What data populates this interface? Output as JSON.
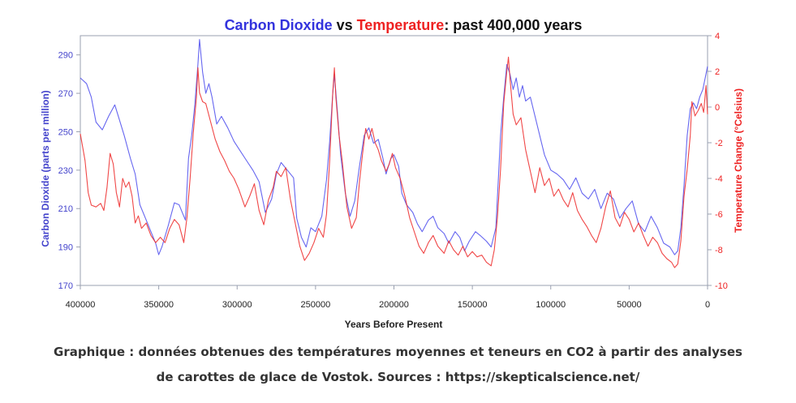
{
  "chart_data": {
    "type": "line",
    "title_parts": [
      {
        "text": "Carbon Dioxide",
        "color": "#3333dd"
      },
      {
        "text": " vs ",
        "color": "#111111"
      },
      {
        "text": "Temperature",
        "color": "#ee2222"
      },
      {
        "text": ": past 400,000 years",
        "color": "#111111"
      }
    ],
    "xlabel": "Years Before Present",
    "ylabel_left": "Carbon Dioxide (parts per million)",
    "ylabel_right": "Temperature Change (°Celsius)",
    "xlim": [
      400000,
      0
    ],
    "ylim_left": [
      170,
      300
    ],
    "ylim_right": [
      -10,
      4
    ],
    "x_ticks": [
      "400000",
      "350000",
      "300000",
      "250000",
      "200000",
      "150000",
      "100000",
      "50000",
      "0"
    ],
    "y_ticks_left": [
      "290",
      "270",
      "250",
      "230",
      "210",
      "190",
      "170"
    ],
    "y_ticks_right": [
      "4",
      "2",
      "0",
      "-2",
      "-4",
      "-6",
      "-8",
      "-10"
    ],
    "grid": false,
    "colors": {
      "co2": "#5555ee",
      "temperature": "#ee3333",
      "frame": "#9aa0b0",
      "left_axis_text": "#4444cc",
      "right_axis_text": "#ee2222"
    },
    "series": [
      {
        "key": "co2",
        "axis": "left",
        "color": "#5555ee",
        "points": [
          [
            400000,
            278
          ],
          [
            396000,
            275
          ],
          [
            393000,
            268
          ],
          [
            390000,
            255
          ],
          [
            386000,
            251
          ],
          [
            382000,
            258
          ],
          [
            378000,
            264
          ],
          [
            375000,
            256
          ],
          [
            372000,
            248
          ],
          [
            368000,
            236
          ],
          [
            365000,
            228
          ],
          [
            362000,
            212
          ],
          [
            358000,
            204
          ],
          [
            355000,
            198
          ],
          [
            352000,
            192
          ],
          [
            350000,
            186
          ],
          [
            348000,
            190
          ],
          [
            344000,
            201
          ],
          [
            340000,
            213
          ],
          [
            337000,
            212
          ],
          [
            333000,
            204
          ],
          [
            331000,
            236
          ],
          [
            329000,
            248
          ],
          [
            327000,
            264
          ],
          [
            325000,
            285
          ],
          [
            324000,
            298
          ],
          [
            322000,
            281
          ],
          [
            320000,
            270
          ],
          [
            318000,
            275
          ],
          [
            316000,
            268
          ],
          [
            313000,
            254
          ],
          [
            310000,
            258
          ],
          [
            306000,
            252
          ],
          [
            302000,
            245
          ],
          [
            298000,
            240
          ],
          [
            294000,
            235
          ],
          [
            290000,
            230
          ],
          [
            286000,
            224
          ],
          [
            282000,
            208
          ],
          [
            278000,
            215
          ],
          [
            275000,
            228
          ],
          [
            272000,
            234
          ],
          [
            268000,
            230
          ],
          [
            264000,
            226
          ],
          [
            262000,
            205
          ],
          [
            259000,
            195
          ],
          [
            256000,
            190
          ],
          [
            253000,
            200
          ],
          [
            250000,
            198
          ],
          [
            246000,
            206
          ],
          [
            243000,
            225
          ],
          [
            241000,
            245
          ],
          [
            239000,
            270
          ],
          [
            238000,
            280
          ],
          [
            236000,
            260
          ],
          [
            234000,
            238
          ],
          [
            231000,
            218
          ],
          [
            228000,
            206
          ],
          [
            225000,
            214
          ],
          [
            222000,
            232
          ],
          [
            219000,
            248
          ],
          [
            216000,
            252
          ],
          [
            213000,
            244
          ],
          [
            210000,
            246
          ],
          [
            207000,
            236
          ],
          [
            205000,
            228
          ],
          [
            202000,
            236
          ],
          [
            200000,
            238
          ],
          [
            197000,
            232
          ],
          [
            195000,
            218
          ],
          [
            192000,
            212
          ],
          [
            188000,
            208
          ],
          [
            185000,
            202
          ],
          [
            182000,
            198
          ],
          [
            178000,
            204
          ],
          [
            175000,
            206
          ],
          [
            172000,
            200
          ],
          [
            168000,
            197
          ],
          [
            165000,
            192
          ],
          [
            161000,
            198
          ],
          [
            158000,
            195
          ],
          [
            155000,
            188
          ],
          [
            152000,
            193
          ],
          [
            148000,
            198
          ],
          [
            145000,
            196
          ],
          [
            141000,
            193
          ],
          [
            138000,
            190
          ],
          [
            135000,
            200
          ],
          [
            132000,
            248
          ],
          [
            130000,
            268
          ],
          [
            128000,
            285
          ],
          [
            126000,
            280
          ],
          [
            124000,
            272
          ],
          [
            122000,
            278
          ],
          [
            120000,
            268
          ],
          [
            118000,
            274
          ],
          [
            116000,
            266
          ],
          [
            113000,
            268
          ],
          [
            110000,
            258
          ],
          [
            107000,
            248
          ],
          [
            104000,
            238
          ],
          [
            100000,
            230
          ],
          [
            96000,
            228
          ],
          [
            92000,
            225
          ],
          [
            88000,
            220
          ],
          [
            84000,
            226
          ],
          [
            80000,
            218
          ],
          [
            76000,
            215
          ],
          [
            72000,
            220
          ],
          [
            68000,
            210
          ],
          [
            64000,
            218
          ],
          [
            60000,
            215
          ],
          [
            56000,
            205
          ],
          [
            52000,
            210
          ],
          [
            48000,
            214
          ],
          [
            44000,
            202
          ],
          [
            40000,
            198
          ],
          [
            36000,
            206
          ],
          [
            32000,
            200
          ],
          [
            28000,
            192
          ],
          [
            24000,
            190
          ],
          [
            21000,
            186
          ],
          [
            19000,
            188
          ],
          [
            17000,
            200
          ],
          [
            15000,
            222
          ],
          [
            13000,
            248
          ],
          [
            11000,
            262
          ],
          [
            9000,
            265
          ],
          [
            7000,
            262
          ],
          [
            5000,
            268
          ],
          [
            3000,
            272
          ],
          [
            1500,
            278
          ],
          [
            0,
            284
          ]
        ]
      },
      {
        "key": "temperature",
        "axis": "right",
        "color": "#ee3333",
        "points": [
          [
            400000,
            -1.5
          ],
          [
            397000,
            -3
          ],
          [
            395000,
            -4.8
          ],
          [
            393000,
            -5.5
          ],
          [
            390000,
            -5.6
          ],
          [
            387000,
            -5.4
          ],
          [
            385000,
            -5.8
          ],
          [
            383000,
            -4.5
          ],
          [
            381000,
            -2.6
          ],
          [
            379000,
            -3.2
          ],
          [
            377000,
            -4.8
          ],
          [
            375000,
            -5.6
          ],
          [
            373000,
            -4
          ],
          [
            371000,
            -4.5
          ],
          [
            369000,
            -4.2
          ],
          [
            367000,
            -5
          ],
          [
            365000,
            -6.5
          ],
          [
            363000,
            -6.1
          ],
          [
            361000,
            -6.8
          ],
          [
            358000,
            -6.5
          ],
          [
            355000,
            -7.2
          ],
          [
            352000,
            -7.6
          ],
          [
            349000,
            -7.3
          ],
          [
            346000,
            -7.6
          ],
          [
            343000,
            -6.8
          ],
          [
            340000,
            -6.3
          ],
          [
            337000,
            -6.6
          ],
          [
            334000,
            -7.6
          ],
          [
            332000,
            -6.2
          ],
          [
            330000,
            -4
          ],
          [
            328000,
            -1.5
          ],
          [
            326000,
            0.5
          ],
          [
            325000,
            2.2
          ],
          [
            324000,
            0.8
          ],
          [
            322000,
            0.3
          ],
          [
            320000,
            0.2
          ],
          [
            317000,
            -0.8
          ],
          [
            314000,
            -1.8
          ],
          [
            311000,
            -2.5
          ],
          [
            308000,
            -3
          ],
          [
            305000,
            -3.6
          ],
          [
            302000,
            -4
          ],
          [
            299000,
            -4.6
          ],
          [
            295000,
            -5.6
          ],
          [
            292000,
            -5
          ],
          [
            289000,
            -4.3
          ],
          [
            286000,
            -5.8
          ],
          [
            283000,
            -6.6
          ],
          [
            280000,
            -5.2
          ],
          [
            277000,
            -4.5
          ],
          [
            275000,
            -3.6
          ],
          [
            272000,
            -3.9
          ],
          [
            269000,
            -3.4
          ],
          [
            266000,
            -5.2
          ],
          [
            263000,
            -6.5
          ],
          [
            260000,
            -7.8
          ],
          [
            257000,
            -8.6
          ],
          [
            254000,
            -8.2
          ],
          [
            251000,
            -7.6
          ],
          [
            248000,
            -6.8
          ],
          [
            245000,
            -7.3
          ],
          [
            243000,
            -6
          ],
          [
            241000,
            -3
          ],
          [
            239000,
            0.8
          ],
          [
            238000,
            2.2
          ],
          [
            237000,
            0.5
          ],
          [
            235000,
            -1.6
          ],
          [
            233000,
            -3
          ],
          [
            230000,
            -5.6
          ],
          [
            227000,
            -6.8
          ],
          [
            224000,
            -6.2
          ],
          [
            222000,
            -4.2
          ],
          [
            220000,
            -2.6
          ],
          [
            218000,
            -1.2
          ],
          [
            216000,
            -1.8
          ],
          [
            214000,
            -1.2
          ],
          [
            212000,
            -2
          ],
          [
            210000,
            -2.4
          ],
          [
            208000,
            -3
          ],
          [
            205000,
            -3.6
          ],
          [
            203000,
            -3.2
          ],
          [
            201000,
            -2.6
          ],
          [
            199000,
            -3.4
          ],
          [
            196000,
            -4
          ],
          [
            193000,
            -5
          ],
          [
            190000,
            -6.2
          ],
          [
            187000,
            -7
          ],
          [
            184000,
            -7.8
          ],
          [
            181000,
            -8.2
          ],
          [
            178000,
            -7.6
          ],
          [
            175000,
            -7.2
          ],
          [
            172000,
            -7.8
          ],
          [
            168000,
            -8.2
          ],
          [
            165000,
            -7.5
          ],
          [
            162000,
            -8
          ],
          [
            159000,
            -8.3
          ],
          [
            156000,
            -7.8
          ],
          [
            153000,
            -8.4
          ],
          [
            150000,
            -8.1
          ],
          [
            147000,
            -8.4
          ],
          [
            144000,
            -8.3
          ],
          [
            141000,
            -8.7
          ],
          [
            138000,
            -8.9
          ],
          [
            136000,
            -8
          ],
          [
            134000,
            -6.2
          ],
          [
            132000,
            -3.5
          ],
          [
            130000,
            0.2
          ],
          [
            128000,
            2
          ],
          [
            127000,
            2.8
          ],
          [
            126000,
            1.6
          ],
          [
            124000,
            -0.4
          ],
          [
            122000,
            -1
          ],
          [
            119000,
            -0.6
          ],
          [
            116000,
            -2.4
          ],
          [
            113000,
            -3.6
          ],
          [
            110000,
            -4.8
          ],
          [
            107000,
            -3.4
          ],
          [
            104000,
            -4.4
          ],
          [
            101000,
            -4
          ],
          [
            98000,
            -5
          ],
          [
            95000,
            -4.6
          ],
          [
            92000,
            -5.2
          ],
          [
            89000,
            -5.6
          ],
          [
            86000,
            -4.8
          ],
          [
            83000,
            -5.8
          ],
          [
            80000,
            -6.3
          ],
          [
            77000,
            -6.7
          ],
          [
            74000,
            -7.2
          ],
          [
            71000,
            -7.6
          ],
          [
            68000,
            -6.8
          ],
          [
            65000,
            -5.6
          ],
          [
            62000,
            -4.7
          ],
          [
            59000,
            -6.2
          ],
          [
            56000,
            -6.7
          ],
          [
            53000,
            -5.9
          ],
          [
            50000,
            -6.3
          ],
          [
            47000,
            -7
          ],
          [
            44000,
            -6.5
          ],
          [
            41000,
            -7.2
          ],
          [
            38000,
            -7.8
          ],
          [
            35000,
            -7.3
          ],
          [
            32000,
            -7.6
          ],
          [
            29000,
            -8.2
          ],
          [
            26000,
            -8.5
          ],
          [
            23000,
            -8.7
          ],
          [
            21000,
            -9
          ],
          [
            19000,
            -8.8
          ],
          [
            17000,
            -7.5
          ],
          [
            15000,
            -5
          ],
          [
            13000,
            -3.5
          ],
          [
            11000,
            -1.6
          ],
          [
            10000,
            0.3
          ],
          [
            8000,
            -0.5
          ],
          [
            6000,
            -0.2
          ],
          [
            4000,
            0.2
          ],
          [
            2500,
            -0.3
          ],
          [
            1000,
            1.2
          ],
          [
            0,
            -0.4
          ]
        ]
      }
    ]
  },
  "caption": {
    "line1": "Graphique : données obtenues des températures moyennes et teneurs en CO2 à partir des analyses",
    "line2": "de carottes de glace de Vostok. Sources : https://skepticalscience.net/"
  }
}
